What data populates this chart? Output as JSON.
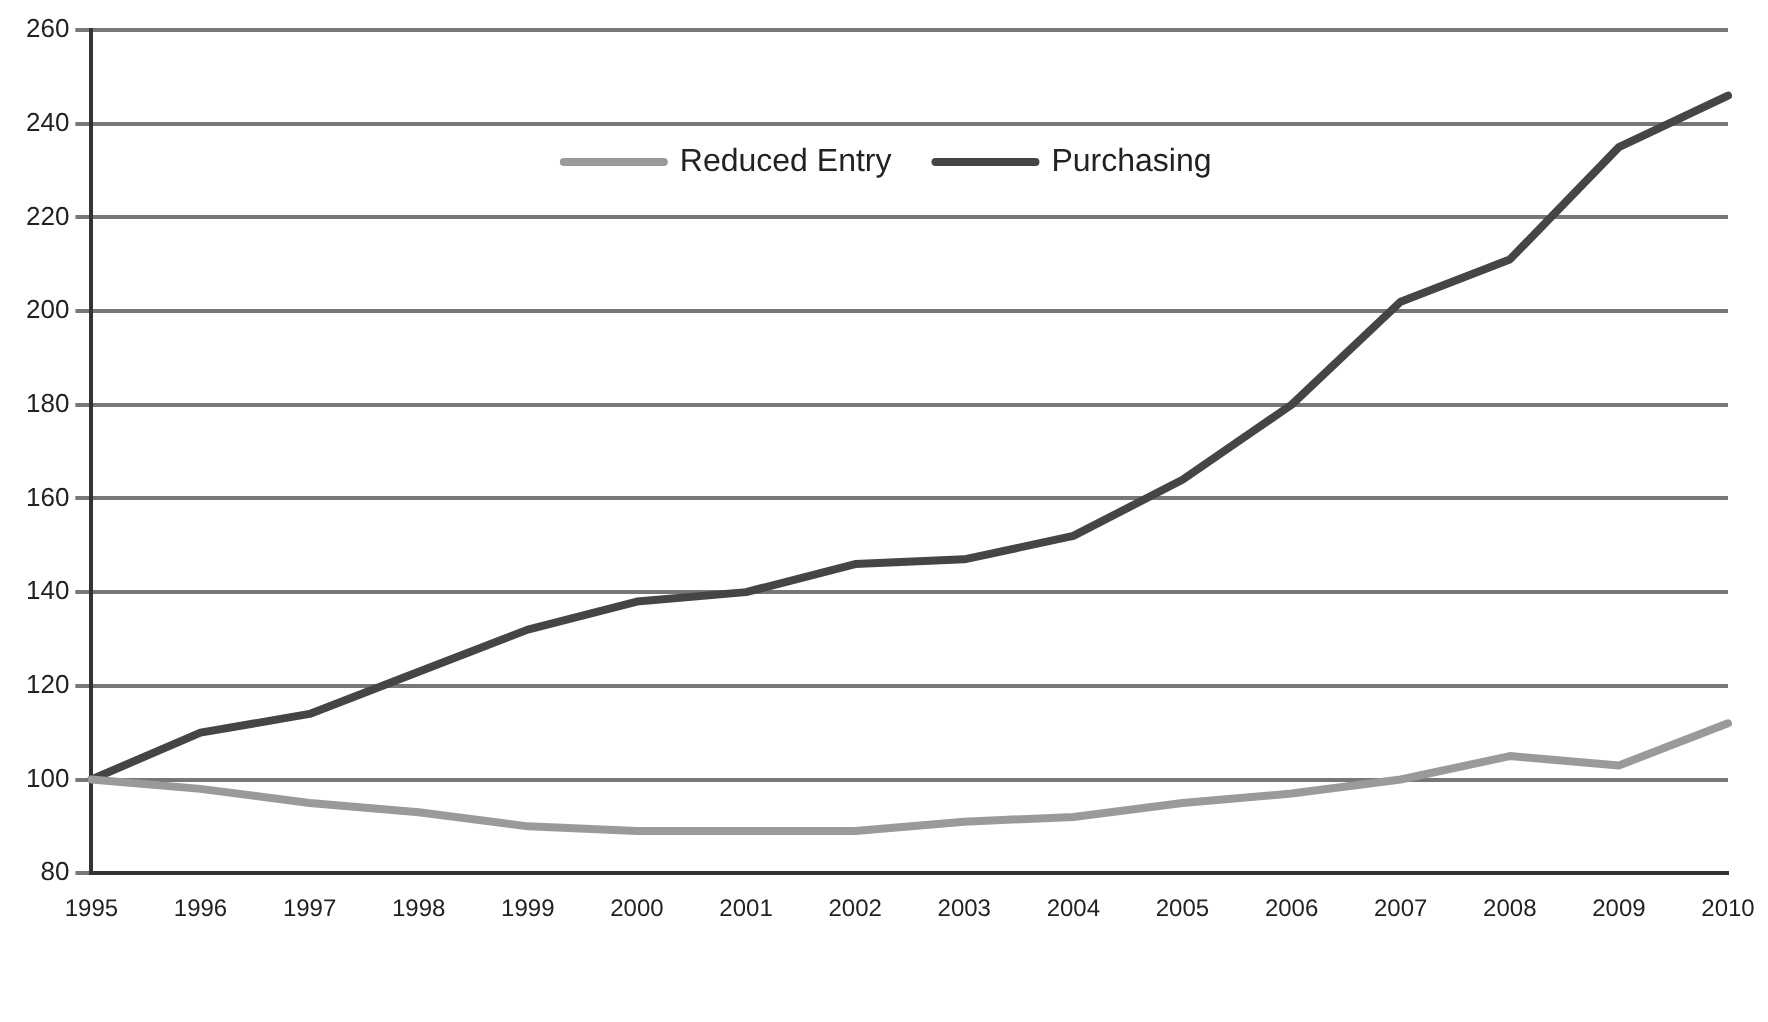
{
  "chart_data": {
    "type": "line",
    "categories": [
      "1995",
      "1996",
      "1997",
      "1998",
      "1999",
      "2000",
      "2001",
      "2002",
      "2003",
      "2004",
      "2005",
      "2006",
      "2007",
      "2008",
      "2009",
      "2010"
    ],
    "series": [
      {
        "name": "Reduced Entry",
        "color": "#9a9a9a",
        "values": [
          100,
          98,
          95,
          93,
          90,
          89,
          89,
          89,
          91,
          92,
          95,
          97,
          100,
          105,
          103,
          112
        ]
      },
      {
        "name": "Purchasing",
        "color": "#454545",
        "values": [
          100,
          110,
          114,
          123,
          132,
          138,
          140,
          146,
          147,
          152,
          164,
          180,
          202,
          211,
          235,
          246
        ]
      }
    ],
    "ylim": [
      80,
      260
    ],
    "yticks": [
      80,
      100,
      120,
      140,
      160,
      180,
      200,
      220,
      240,
      260
    ],
    "grid": "y",
    "legend": "top",
    "marker": "none",
    "line_style": "solid"
  }
}
